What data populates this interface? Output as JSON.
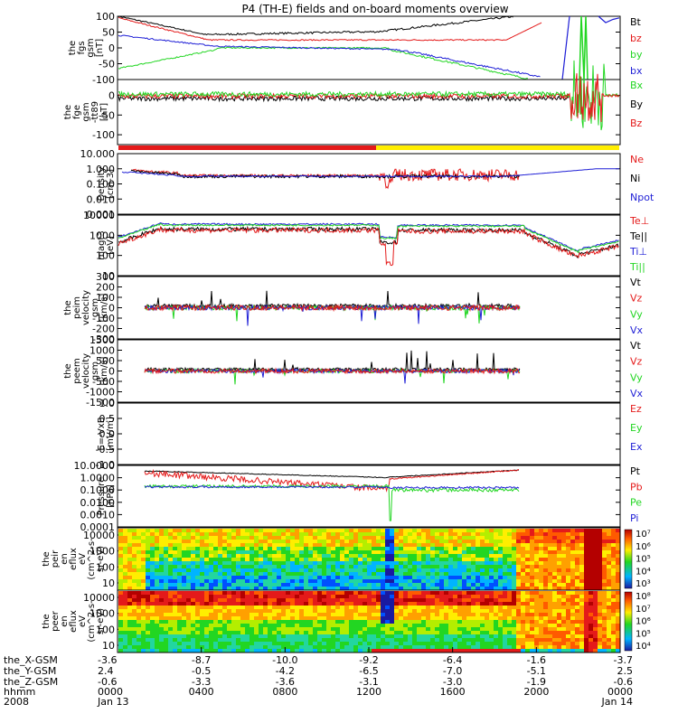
{
  "title": "P4 (TH-E) fields and on-board moments overview",
  "colors": {
    "black": "#000000",
    "red": "#e41a1a",
    "green": "#22d622",
    "blue": "#1f1fd6",
    "yellow": "#ffee00"
  },
  "chart_data": [
    {
      "id": "fgs",
      "type": "line",
      "ylabel": [
        "the",
        "fgs",
        "gsm",
        "[nT]"
      ],
      "ylim": [
        -100,
        100
      ],
      "yticks": [
        100,
        50,
        0,
        -50,
        -100
      ],
      "legend": [
        {
          "name": "Bt",
          "color": "black"
        },
        {
          "name": "bz",
          "color": "red"
        },
        {
          "name": "by",
          "color": "green"
        },
        {
          "name": "bx",
          "color": "blue"
        }
      ]
    },
    {
      "id": "fge",
      "type": "line",
      "ylabel": [
        "the",
        "fge",
        "gsm",
        "-tt89",
        "[nT]"
      ],
      "ylim": [
        -125,
        40
      ],
      "yticks": [
        0,
        -50,
        -100
      ],
      "legend": [
        {
          "name": "Bx",
          "color": "green"
        },
        {
          "name": "By",
          "color": "black"
        },
        {
          "name": "Bz",
          "color": "red"
        }
      ]
    },
    {
      "id": "density",
      "type": "line",
      "ylabel": [
        "Density",
        "[cm-3]"
      ],
      "log": true,
      "ylim": [
        0.001,
        10
      ],
      "yticks": [
        "10.000",
        "1.000",
        "0.100",
        "0.010",
        "0.001"
      ],
      "legend": [
        {
          "name": "Ne",
          "color": "red"
        },
        {
          "name": "Ni",
          "color": "black"
        },
        {
          "name": "Npot",
          "color": "blue"
        }
      ]
    },
    {
      "id": "temp",
      "type": "line",
      "ylabel": [
        "magt3",
        "[eV]"
      ],
      "log": true,
      "ylim": [
        10,
        10000
      ],
      "yticks": [
        "10000",
        "1000",
        "100",
        "10"
      ],
      "legend": [
        {
          "name": "Te⊥",
          "color": "red"
        },
        {
          "name": "Te||",
          "color": "black"
        },
        {
          "name": "Ti⊥",
          "color": "blue"
        },
        {
          "name": "Ti||",
          "color": "green"
        }
      ]
    },
    {
      "id": "ve",
      "type": "line",
      "ylabel": [
        "the",
        "peim",
        "velocity",
        "gsm",
        "[km/s]"
      ],
      "ylim": [
        -300,
        300
      ],
      "yticks": [
        300,
        200,
        100,
        0,
        -100,
        -200,
        -300
      ],
      "legend": [
        {
          "name": "Vt",
          "color": "black"
        },
        {
          "name": "Vz",
          "color": "red"
        },
        {
          "name": "Vy",
          "color": "green"
        },
        {
          "name": "Vx",
          "color": "blue"
        }
      ]
    },
    {
      "id": "vi",
      "type": "line",
      "ylabel": [
        "the",
        "peem",
        "velocity",
        "gsm",
        "[km/s]"
      ],
      "ylim": [
        -1500,
        1500
      ],
      "yticks": [
        1500,
        1000,
        500,
        0,
        -500,
        -1000,
        -1500
      ],
      "legend": [
        {
          "name": "Vt",
          "color": "black"
        },
        {
          "name": "Vz",
          "color": "red"
        },
        {
          "name": "Vy",
          "color": "green"
        },
        {
          "name": "Vx",
          "color": "blue"
        }
      ]
    },
    {
      "id": "efield",
      "type": "line",
      "ylabel": [
        "E=-VxB",
        "[mV/m]"
      ],
      "ylim": [
        -1,
        1
      ],
      "yticks": [
        "1.0",
        "0.5",
        "0.0",
        "-0.5",
        "-1.0"
      ],
      "legend": [
        {
          "name": "Ez",
          "color": "red"
        },
        {
          "name": "Ey",
          "color": "green"
        },
        {
          "name": "Ex",
          "color": "blue"
        }
      ]
    },
    {
      "id": "pressure",
      "type": "line",
      "ylabel": [
        "Pressure",
        "[nPa]"
      ],
      "log": true,
      "ylim": [
        0.0001,
        10
      ],
      "yticks": [
        "10.0000",
        "1.0000",
        "0.1000",
        "0.0100",
        "0.0010",
        "0.0001"
      ],
      "legend": [
        {
          "name": "Pt",
          "color": "black"
        },
        {
          "name": "Pb",
          "color": "red"
        },
        {
          "name": "Pe",
          "color": "green"
        },
        {
          "name": "Pi",
          "color": "blue"
        }
      ]
    },
    {
      "id": "ispec",
      "type": "heatmap",
      "ylabel": [
        "the",
        "peir",
        "en",
        "eflux",
        "eV",
        "(cm^2-s-",
        "sr-eV)"
      ],
      "yticks": [
        "10000",
        "1000",
        "100",
        "10"
      ],
      "cbar_ticks": [
        "10⁷",
        "10⁶",
        "10⁵",
        "10⁴",
        "10³"
      ]
    },
    {
      "id": "espec",
      "type": "heatmap",
      "ylabel": [
        "the",
        "peer",
        "en",
        "eflux",
        "eV",
        "(cm^2-s-",
        "sr-eV)"
      ],
      "yticks": [
        "10000",
        "1000",
        "100",
        "10"
      ],
      "cbar_ticks": [
        "10⁸",
        "10⁷",
        "10⁶",
        "10⁵",
        "10⁴"
      ]
    }
  ],
  "xaxis": {
    "row_labels": [
      "the_X-GSM",
      "the_Y-GSM",
      "the_Z-GSM",
      "hhmm",
      "2008"
    ],
    "ticks": [
      {
        "x": "-3.6",
        "y": "2.4",
        "z": "-0.6",
        "t": "0000",
        "d": "Jan 13"
      },
      {
        "x": "-8.7",
        "y": "-0.5",
        "z": "-3.3",
        "t": "0400",
        "d": ""
      },
      {
        "x": "-10.0",
        "y": "-4.2",
        "z": "-3.6",
        "t": "0800",
        "d": ""
      },
      {
        "x": "-9.2",
        "y": "-6.5",
        "z": "-3.1",
        "t": "1200",
        "d": ""
      },
      {
        "x": "-6.4",
        "y": "-7.0",
        "z": "-3.0",
        "t": "1600",
        "d": ""
      },
      {
        "x": "-1.6",
        "y": "-5.1",
        "z": "-1.9",
        "t": "2000",
        "d": ""
      },
      {
        "x": "-3.7",
        "y": "2.5",
        "z": "-0.6",
        "t": "0000",
        "d": "Jan 14"
      }
    ]
  }
}
